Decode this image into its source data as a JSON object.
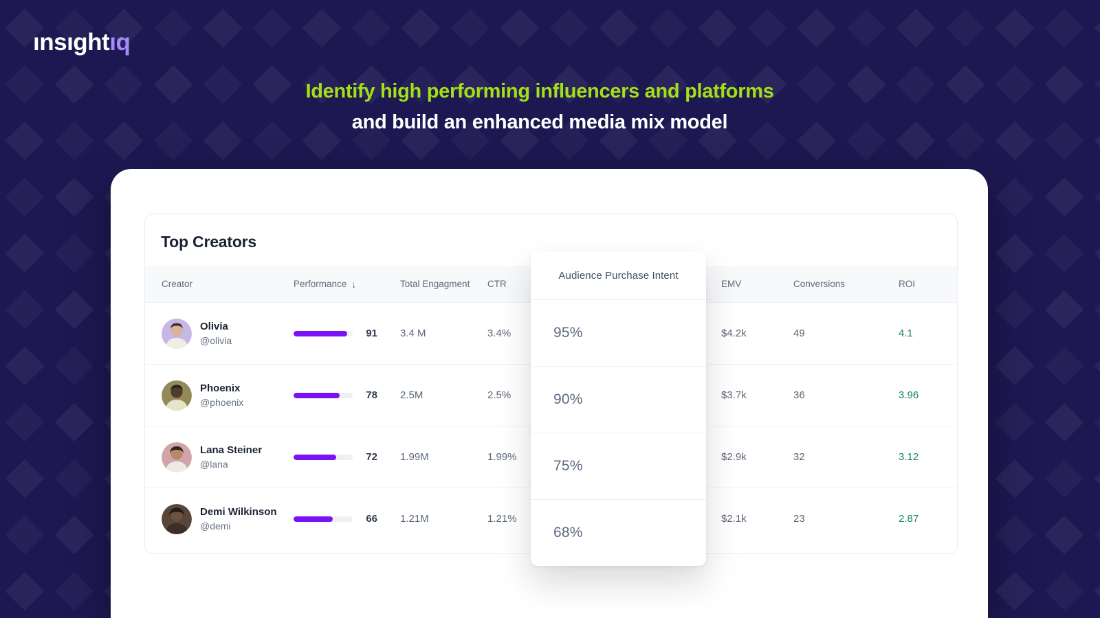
{
  "brand": {
    "logo_part_white": "ınsıght",
    "logo_part_purple": "ıq",
    "logo_diamond_icon": "diamond"
  },
  "hero": {
    "line1": "Identify high performing influencers and platforms",
    "line2": "and build an enhanced media mix model"
  },
  "table": {
    "title": "Top Creators",
    "columns": {
      "creator": "Creator",
      "performance": "Performance",
      "engagement": "Total Engagment",
      "ctr": "CTR",
      "emv": "EMV",
      "conversions": "Conversions",
      "roi": "ROI"
    },
    "sort_icon": "↓",
    "rows": [
      {
        "name": "Olivia",
        "handle": "@olivia",
        "performance": 91,
        "engagement": "3.4 M",
        "ctr": "3.4%",
        "emv": "$4.2k",
        "conversions": "49",
        "roi": "4.1",
        "avatar": {
          "bg": "#c7b6e6",
          "skin": "#d9b29a",
          "hair": "#3f3330",
          "shirt": "#f1ece4"
        }
      },
      {
        "name": "Phoenix",
        "handle": "@phoenix",
        "performance": 78,
        "engagement": "2.5M",
        "ctr": "2.5%",
        "emv": "$3.7k",
        "conversions": "36",
        "roi": "3.96",
        "avatar": {
          "bg": "#948a58",
          "skin": "#4f3b2f",
          "hair": "#2b211c",
          "shirt": "#e8e4c9"
        }
      },
      {
        "name": "Lana Steiner",
        "handle": "@lana",
        "performance": 72,
        "engagement": "1.99M",
        "ctr": "1.99%",
        "emv": "$2.9k",
        "conversions": "32",
        "roi": "3.12",
        "avatar": {
          "bg": "#d2a4a8",
          "skin": "#b98866",
          "hair": "#2e2522",
          "shirt": "#efeae6"
        }
      },
      {
        "name": "Demi Wilkinson",
        "handle": "@demi",
        "performance": 66,
        "engagement": "1.21M",
        "ctr": "1.21%",
        "emv": "$2.1k",
        "conversions": "23",
        "roi": "2.87",
        "avatar": {
          "bg": "#5a4639",
          "skin": "#6e5140",
          "hair": "#241c18",
          "shirt": "#3c2f27"
        }
      }
    ]
  },
  "overlay": {
    "title": "Audience Purchase Intent",
    "values": [
      "95%",
      "90%",
      "75%",
      "68%"
    ]
  },
  "colors": {
    "background_navy": "#1d1852",
    "headline_lime": "#a3e114",
    "accent_purple": "#7a12f3",
    "logo_purple": "#a78bfa",
    "roi_green": "#178a58"
  }
}
